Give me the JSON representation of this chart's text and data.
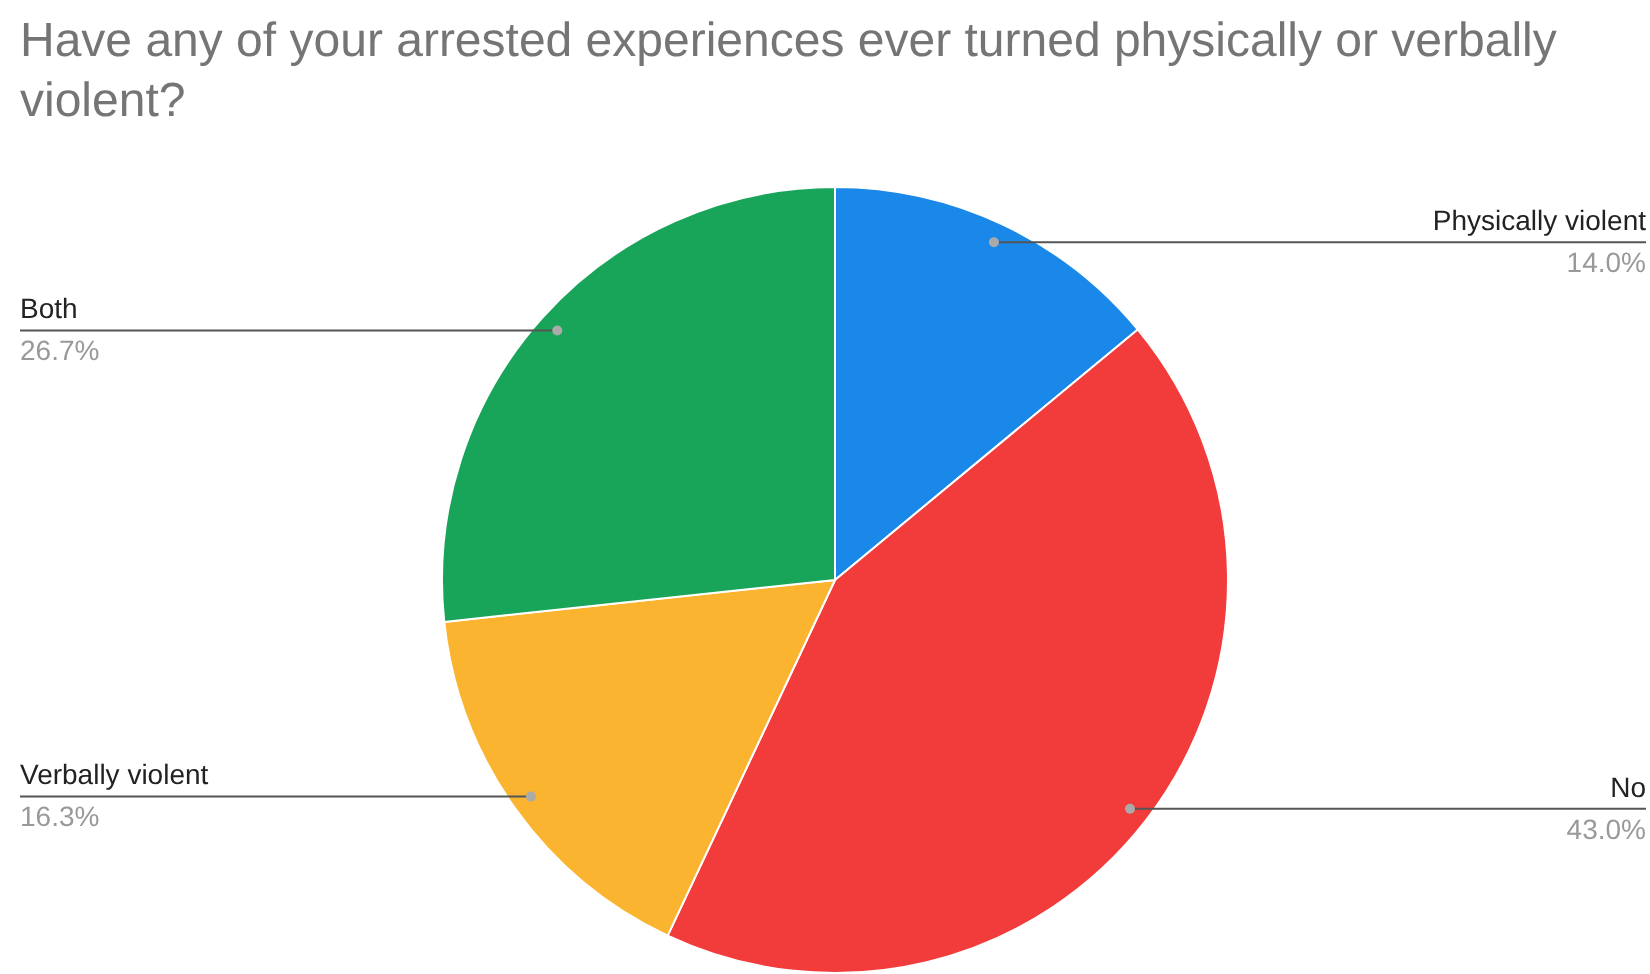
{
  "chart_data": {
    "type": "pie",
    "title": "Have any of your arrested experiences ever turned physically or verbally violent?",
    "categories": [
      "Physically violent",
      "No",
      "Verbally violent",
      "Both"
    ],
    "values": [
      14.0,
      43.0,
      16.3,
      26.7
    ],
    "value_labels": [
      "14.0%",
      "43.0%",
      "16.3%",
      "26.7%"
    ],
    "colors": [
      "#1a88e8",
      "#f23b3b",
      "#fbb430",
      "#18a55a"
    ],
    "legend": false
  }
}
